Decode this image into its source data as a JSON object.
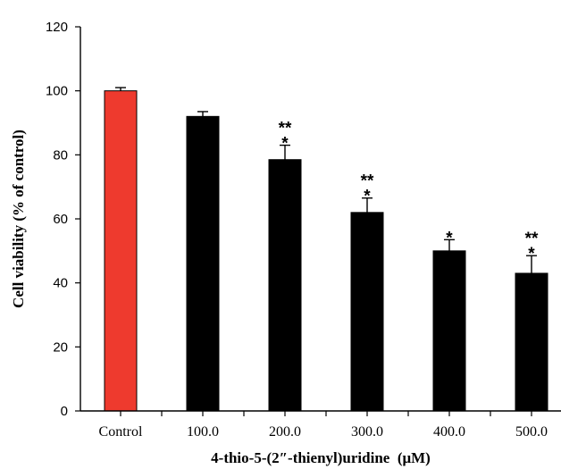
{
  "chart_data": {
    "type": "bar",
    "categories": [
      "Control",
      "100.0",
      "200.0",
      "300.0",
      "400.0",
      "500.0"
    ],
    "values": [
      100,
      92,
      78.5,
      62,
      50,
      43
    ],
    "errors": [
      1,
      1.5,
      4.5,
      4.5,
      3.5,
      5.5
    ],
    "significance": [
      "",
      "",
      "**\n*",
      "**\n*",
      "*",
      "**\n*"
    ],
    "bar_colors": [
      "#ee3a2e",
      "#000000",
      "#000000",
      "#000000",
      "#000000",
      "#000000"
    ],
    "xlabel": "4-thio-5-(2″-thienyl)uridine  (μM)",
    "ylabel": "Cell viability (% of control)",
    "ylim": [
      0,
      120
    ],
    "yticks": [
      0,
      20,
      40,
      60,
      80,
      100,
      120
    ],
    "grid": false,
    "legend": "none"
  }
}
